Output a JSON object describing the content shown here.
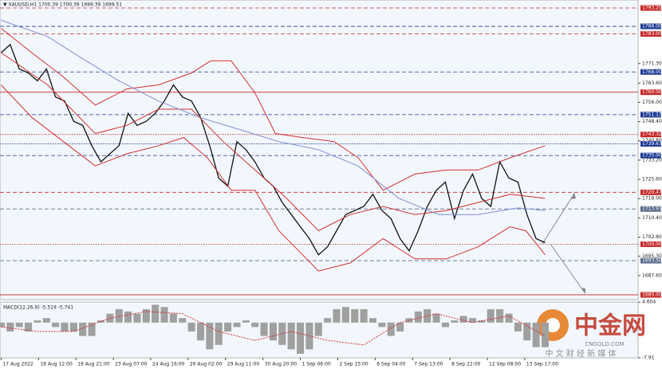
{
  "chart_data": [
    {
      "type": "line",
      "title": "▼ XAUUSD,H1  1700.39 1700.39 1699.39 1699.51",
      "xlim": [
        -1,
        562
      ],
      "xticks": [
        {
          "value": 0,
          "label": "17 Aug 2022"
        },
        {
          "value": 33,
          "label": "18 Aug 12:00"
        },
        {
          "value": 66,
          "label": "19 Aug 21:00"
        },
        {
          "value": 99,
          "label": "23 Aug 07:00"
        },
        {
          "value": 132,
          "label": "24 Aug 16:00"
        },
        {
          "value": 165,
          "label": "26 Aug 02:00"
        },
        {
          "value": 198,
          "label": "29 Aug 11:00"
        },
        {
          "value": 231,
          "label": "30 Aug 20:00"
        },
        {
          "value": 264,
          "label": "1 Sep 06:00"
        },
        {
          "value": 297,
          "label": "2 Sep 15:00"
        },
        {
          "value": 330,
          "label": "6 Sep 04:00"
        },
        {
          "value": 363,
          "label": "7 Sep 13:00"
        },
        {
          "value": 396,
          "label": "8 Sep 22:00"
        },
        {
          "value": 429,
          "label": "12 Sep 08:00"
        },
        {
          "value": 462,
          "label": "13 Sep 17:00"
        }
      ],
      "ylim": [
        1678.1,
        1796.4
      ],
      "yticks": [
        {
          "value": 1771.3,
          "label": "1771.30"
        },
        {
          "value": 1763.6,
          "label": "1763.60"
        },
        {
          "value": 1756,
          "label": "1756.00"
        },
        {
          "value": 1748.4,
          "label": "1748.40"
        },
        {
          "value": 1740.8,
          "label": "1740.80"
        },
        {
          "value": 1733.2,
          "label": "1733.20"
        },
        {
          "value": 1725.6,
          "label": "1725.60"
        },
        {
          "value": 1718,
          "label": "1718.00"
        },
        {
          "value": 1710.4,
          "label": "1710.40"
        },
        {
          "value": 1702.8,
          "label": "1702.80"
        },
        {
          "value": 1695.3,
          "label": "1695.30"
        },
        {
          "value": 1687.6,
          "label": "1687.60"
        }
      ],
      "levels": [
        {
          "value": 1793.25,
          "label": "1793.25",
          "color": "#c62828",
          "style": "dash"
        },
        {
          "value": 1786,
          "label": "1786.00",
          "color": "#1f3a93",
          "style": "dash"
        },
        {
          "value": 1783,
          "label": "1783.00",
          "color": "#c62828",
          "style": "dash"
        },
        {
          "value": 1768,
          "label": "1768.00",
          "color": "#1f3a93",
          "style": "dash"
        },
        {
          "value": 1760,
          "label": "1760.00",
          "color": "#c62828",
          "style": "solid"
        },
        {
          "value": 1751.13,
          "label": "1751.13",
          "color": "#1f3a93",
          "style": "dash"
        },
        {
          "value": 1743.32,
          "label": "1743.32",
          "color": "#c62828",
          "style": "dot"
        },
        {
          "value": 1739.63,
          "label": "1739.63",
          "color": "#1f3a93",
          "style": "dot"
        },
        {
          "value": 1735,
          "label": "1735.00",
          "color": "#1f3a93",
          "style": "dash"
        },
        {
          "value": 1720.47,
          "label": "1720.47",
          "color": "#c62828",
          "style": "dash"
        },
        {
          "value": 1713.91,
          "label": "1713.91",
          "color": "#5b6b8a",
          "style": "dash"
        },
        {
          "value": 1700,
          "label": "1700.00",
          "color": "#c62828",
          "style": "dot"
        },
        {
          "value": 1693.5,
          "label": "1693.50",
          "color": "#5b6b8a",
          "style": "dash"
        },
        {
          "value": 1680,
          "label": "1680.00",
          "color": "#c62828",
          "style": "solid"
        }
      ],
      "series": [
        {
          "color": "#111111",
          "width": 1.3,
          "x": [
            0,
            8,
            16,
            24,
            32,
            40,
            48,
            56,
            64,
            72,
            80,
            88,
            96,
            104,
            112,
            120,
            128,
            136,
            144,
            152,
            160,
            168,
            176,
            184,
            192,
            200,
            208,
            216,
            224,
            232,
            240,
            248,
            256,
            264,
            272,
            280,
            288,
            296,
            304,
            312,
            320,
            328,
            336,
            344,
            352,
            360,
            368,
            376,
            384,
            392,
            400,
            408,
            416,
            424,
            432,
            440,
            448,
            456,
            464,
            472,
            480
          ],
          "values": [
            1775.6,
            1778.8,
            1769.2,
            1767.6,
            1764.5,
            1769.2,
            1758.1,
            1756.5,
            1748.5,
            1746.9,
            1738.9,
            1732.5,
            1735.7,
            1738.9,
            1751.7,
            1746.9,
            1748.5,
            1751.7,
            1756.5,
            1762.9,
            1758.1,
            1756.5,
            1750.1,
            1738.9,
            1726.1,
            1722.9,
            1740.5,
            1737.3,
            1732.5,
            1726.1,
            1722.9,
            1716.5,
            1711.7,
            1706.9,
            1702.2,
            1695.8,
            1699.0,
            1705.3,
            1711.7,
            1713.3,
            1714.9,
            1719.7,
            1713.3,
            1710.1,
            1702.2,
            1697.4,
            1705.3,
            1714.9,
            1721.3,
            1724.5,
            1710.1,
            1721.3,
            1727.7,
            1718.1,
            1714.9,
            1732.5,
            1726.1,
            1724.5,
            1711.7,
            1702.2,
            1700.6
          ]
        },
        {
          "color": "#d32f2f",
          "width": 1,
          "x": [
            0,
            27,
            55,
            83,
            111,
            139,
            168,
            185,
            203,
            224,
            242,
            266,
            294,
            315,
            337,
            365,
            393,
            421,
            449,
            480
          ],
          "values": [
            1785.2,
            1775.6,
            1766.0,
            1754.9,
            1761.3,
            1762.9,
            1767.6,
            1772.4,
            1772.4,
            1759.7,
            1743.7,
            1742.1,
            1740.5,
            1734.1,
            1721.3,
            1727.7,
            1729.3,
            1729.3,
            1734.1,
            1738.9
          ]
        },
        {
          "color": "#d32f2f",
          "width": 1,
          "x": [
            0,
            41,
            83,
            111,
            139,
            168,
            196,
            224,
            252,
            280,
            308,
            337,
            365,
            393,
            421,
            449,
            480
          ],
          "values": [
            1775.6,
            1762.9,
            1743.7,
            1746.9,
            1753.3,
            1753.3,
            1740.5,
            1729.3,
            1718.1,
            1705.3,
            1711.7,
            1714.9,
            1711.7,
            1713.3,
            1716.5,
            1719.7,
            1718.1
          ]
        },
        {
          "color": "#d32f2f",
          "width": 1,
          "x": [
            0,
            27,
            55,
            83,
            111,
            139,
            161,
            182,
            203,
            224,
            245,
            266,
            280,
            308,
            337,
            365,
            393,
            421,
            449,
            463,
            480
          ],
          "values": [
            1762.9,
            1750.1,
            1740.5,
            1730.9,
            1735.7,
            1738.9,
            1742.1,
            1734.1,
            1721.3,
            1721.3,
            1705.3,
            1695.8,
            1689.4,
            1692.6,
            1702.2,
            1694.2,
            1694.2,
            1699.0,
            1706.9,
            1705.3,
            1695.8
          ]
        },
        {
          "color": "#7f8fd0",
          "width": 1,
          "x": [
            0,
            41,
            69,
            104,
            139,
            175,
            210,
            245,
            280,
            315,
            351,
            386,
            421,
            456,
            480
          ],
          "values": [
            1788.4,
            1782.0,
            1774.0,
            1764.5,
            1756.5,
            1750.1,
            1745.3,
            1740.5,
            1737.3,
            1730.9,
            1718.1,
            1711.7,
            1711.7,
            1714.3,
            1713.3
          ]
        }
      ]
    },
    {
      "type": "histogram",
      "title": "MACD(12,26,9) -5.519 -5.741",
      "xlim": [
        -1,
        562
      ],
      "ylim": [
        -7.91,
        4.604
      ],
      "yticks": [
        4.604,
        -7.91
      ],
      "series": [
        {
          "color": "#a0a0a0",
          "x": [
            0,
            8,
            16,
            24,
            32,
            40,
            48,
            56,
            64,
            72,
            80,
            88,
            96,
            104,
            112,
            120,
            128,
            136,
            144,
            152,
            160,
            168,
            176,
            184,
            192,
            200,
            208,
            216,
            224,
            232,
            240,
            248,
            256,
            264,
            272,
            280,
            288,
            296,
            304,
            312,
            320,
            328,
            336,
            344,
            352,
            360,
            368,
            376,
            384,
            392,
            400,
            408,
            416,
            424,
            432,
            440,
            448,
            456,
            464,
            472,
            480
          ],
          "values": [
            -1,
            -2,
            -1,
            -2,
            0.5,
            1,
            -1,
            -2,
            -2,
            -3,
            -3,
            0.5,
            2,
            3,
            2.5,
            2,
            3,
            4,
            3.5,
            2,
            1,
            -2,
            -4,
            -6,
            -5,
            -2,
            -1,
            0.5,
            -1,
            -3,
            -4,
            -5,
            -6,
            -7,
            -6,
            -3,
            1,
            3,
            3.5,
            3,
            3,
            1,
            -1,
            -3,
            -2,
            1,
            2.5,
            3,
            2,
            -1,
            0.5,
            1.5,
            1,
            0.5,
            3,
            3,
            2,
            -2,
            -4,
            -5.5,
            -5.5
          ]
        },
        {
          "color": "#d32f2f",
          "x": [
            0,
            32,
            64,
            96,
            128,
            160,
            192,
            224,
            256,
            288,
            320,
            352,
            384,
            416,
            448,
            480
          ],
          "values": [
            -1,
            -2,
            -2,
            1,
            2.5,
            2,
            -2,
            -4,
            -2,
            -4,
            -5,
            0,
            2,
            0,
            1.5,
            -3
          ]
        }
      ]
    }
  ],
  "logo": {
    "name": "中金网",
    "domain": "CNGOLD.COM",
    "slogan": "中 文 财 经 新 媒 体"
  }
}
